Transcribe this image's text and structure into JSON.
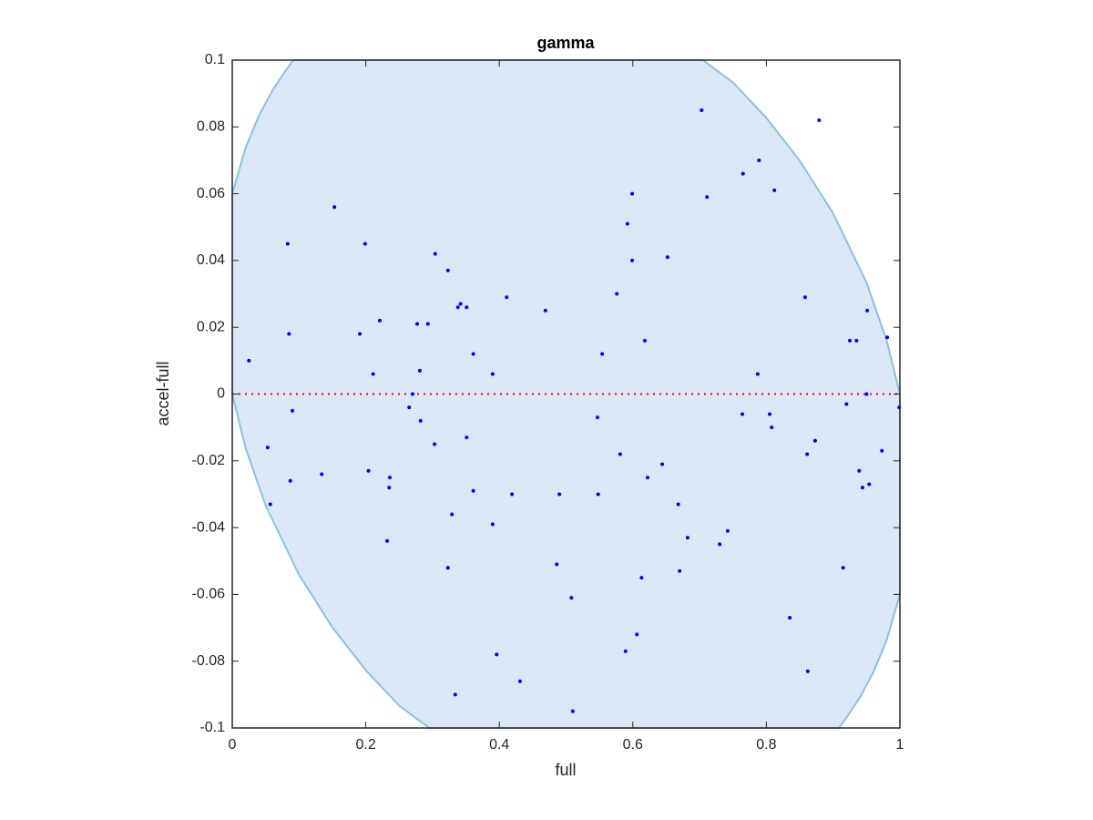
{
  "chart_data": {
    "type": "scatter",
    "title": "gamma",
    "x_label": "full",
    "y_label": "accel-full",
    "xlim": [
      0,
      1
    ],
    "ylim": [
      -0.1,
      0.1
    ],
    "xticks": [
      0,
      0.2,
      0.4,
      0.6,
      0.8,
      1
    ],
    "yticks": [
      -0.1,
      -0.08,
      -0.06,
      -0.04,
      -0.02,
      0,
      0.02,
      0.04,
      0.06,
      0.08,
      0.1
    ],
    "region": {
      "color": "#d9e8f4",
      "edge_color": "#8cc1e3",
      "x": [
        0,
        0,
        0.02,
        0.04,
        0.06,
        0.08,
        0.0914,
        0.705,
        0.75,
        0.8,
        0.85,
        0.9,
        0.95,
        0.98,
        1,
        1,
        0.98,
        0.96,
        0.94,
        0.92,
        0.9086,
        0.295,
        0.25,
        0.2,
        0.15,
        0.1,
        0.05,
        0.02,
        0
      ],
      "y": [
        0,
        0.06,
        0.0738,
        0.0834,
        0.0909,
        0.0969,
        0.1,
        0.1,
        0.0933,
        0.0827,
        0.0699,
        0.0541,
        0.0334,
        0.0162,
        0,
        -0.06,
        -0.0738,
        -0.0834,
        -0.0909,
        -0.0969,
        -0.1,
        -0.1,
        -0.0933,
        -0.0827,
        -0.0699,
        -0.0541,
        -0.0334,
        -0.0162,
        0
      ]
    },
    "reference_line": {
      "color": "#ff0000",
      "x": [
        0,
        1
      ],
      "y": [
        0,
        0
      ]
    },
    "points": {
      "color": "#0000ff",
      "x": [
        0.025,
        0.083,
        0.085,
        0.09,
        0.087,
        0.053,
        0.057,
        0.153,
        0.134,
        0.199,
        0.191,
        0.221,
        0.211,
        0.204,
        0.236,
        0.235,
        0.232,
        0.265,
        0.27,
        0.277,
        0.281,
        0.282,
        0.293,
        0.304,
        0.303,
        0.323,
        0.323,
        0.329,
        0.334,
        0.338,
        0.342,
        0.351,
        0.351,
        0.361,
        0.361,
        0.39,
        0.39,
        0.396,
        0.411,
        0.419,
        0.431,
        0.469,
        0.486,
        0.49,
        0.508,
        0.51,
        0.547,
        0.548,
        0.554,
        0.576,
        0.581,
        0.592,
        0.589,
        0.599,
        0.599,
        0.606,
        0.613,
        0.618,
        0.622,
        0.644,
        0.652,
        0.668,
        0.67,
        0.682,
        0.703,
        0.711,
        0.73,
        0.742,
        0.765,
        0.764,
        0.787,
        0.789,
        0.808,
        0.812,
        0.805,
        0.835,
        0.858,
        0.861,
        0.862,
        0.873,
        0.879,
        0.915,
        0.92,
        0.925,
        0.935,
        0.939,
        0.944,
        0.95,
        0.951,
        0.954,
        0.973,
        0.981,
        0.999
      ],
      "y": [
        0.01,
        0.045,
        0.018,
        -0.005,
        -0.026,
        -0.016,
        -0.033,
        0.056,
        -0.024,
        0.045,
        0.018,
        0.022,
        0.006,
        -0.023,
        -0.025,
        -0.028,
        -0.044,
        -0.004,
        0,
        0.021,
        0.007,
        -0.008,
        0.021,
        0.042,
        -0.015,
        0.037,
        -0.052,
        -0.036,
        -0.09,
        0.026,
        0.027,
        0.026,
        -0.013,
        0.012,
        -0.029,
        0.006,
        -0.039,
        -0.078,
        0.029,
        -0.03,
        -0.086,
        0.025,
        -0.051,
        -0.03,
        -0.061,
        -0.095,
        -0.007,
        -0.03,
        0.012,
        0.03,
        -0.018,
        0.051,
        -0.077,
        0.06,
        0.04,
        -0.072,
        -0.055,
        0.016,
        -0.025,
        -0.021,
        0.041,
        -0.033,
        -0.053,
        -0.043,
        0.085,
        0.059,
        -0.045,
        -0.041,
        0.066,
        -0.006,
        0.006,
        0.07,
        -0.01,
        0.061,
        -0.006,
        -0.067,
        0.029,
        -0.018,
        -0.083,
        -0.014,
        0.082,
        -0.052,
        -0.003,
        0.016,
        0.016,
        -0.023,
        -0.028,
        0,
        0.025,
        -0.027,
        -0.017,
        0.017,
        -0.004
      ]
    }
  }
}
